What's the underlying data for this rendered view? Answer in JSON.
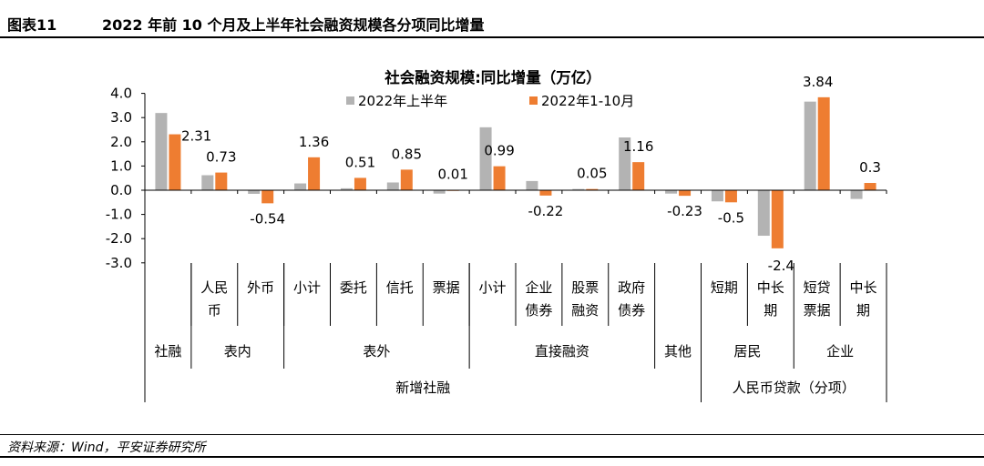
{
  "header": {
    "figure_number": "图表11",
    "figure_title": "2022 年前 10 个月及上半年社会融资规模各分项同比增量"
  },
  "source": "资料来源：Wind，平安证券研究所",
  "chart_data": {
    "type": "bar",
    "title": "社会融资规模:同比增量（万亿）",
    "ylim": [
      -3,
      4
    ],
    "yticks": [
      "4.0",
      "3.0",
      "2.0",
      "1.0",
      "0.0",
      "-1.0",
      "-2.0",
      "-3.0"
    ],
    "legend_position": "top",
    "categories": [
      "社融",
      "人民币",
      "外币",
      "小计",
      "委托",
      "信托",
      "票据",
      "小计",
      "企业债券",
      "股票融资",
      "政府债券",
      "其他",
      "短期",
      "中长期",
      "短贷票据",
      "中长期"
    ],
    "series": [
      {
        "name": "2022年上半年",
        "color": "#b3b3b3",
        "values": [
          3.19,
          0.62,
          -0.15,
          0.28,
          0.08,
          0.32,
          -0.14,
          2.6,
          0.38,
          0.05,
          2.18,
          -0.14,
          -0.46,
          -1.88,
          3.66,
          -0.36
        ]
      },
      {
        "name": "2022年1-10月",
        "color": "#ee7d31",
        "values": [
          2.31,
          0.73,
          -0.54,
          1.36,
          0.51,
          0.85,
          0.01,
          0.99,
          -0.22,
          0.05,
          1.16,
          -0.23,
          -0.5,
          -2.4,
          3.84,
          0.3
        ],
        "labels": [
          "2.31",
          "0.73",
          "-0.54",
          "1.36",
          "0.51",
          "0.85",
          "0.01",
          "0.99",
          "-0.22",
          "0.05",
          "1.16",
          "-0.23",
          "-0.5",
          "-2.4",
          "3.84",
          "0.3"
        ]
      }
    ],
    "category_groups": [
      {
        "label": "社融",
        "span": [
          0,
          0
        ]
      },
      {
        "label": "表内",
        "span": [
          1,
          2
        ]
      },
      {
        "label": "表外",
        "span": [
          3,
          6
        ]
      },
      {
        "label": "直接融资",
        "span": [
          7,
          10
        ]
      },
      {
        "label": "其他",
        "span": [
          11,
          11
        ]
      },
      {
        "label": "居民",
        "span": [
          12,
          13
        ]
      },
      {
        "label": "企业",
        "span": [
          14,
          15
        ]
      }
    ],
    "top_groups": [
      {
        "label": "新增社融",
        "span": [
          0,
          11
        ]
      },
      {
        "label": "人民币贷款（分项）",
        "span": [
          12,
          15
        ]
      }
    ]
  }
}
